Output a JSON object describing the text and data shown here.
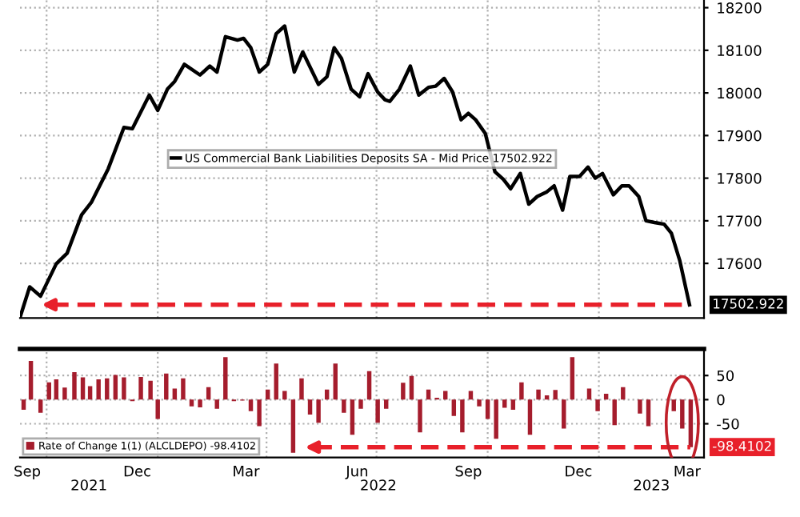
{
  "chart_data": [
    {
      "type": "line",
      "xlim": [
        "2021-09-09",
        "2023-03-29"
      ],
      "ylim": [
        17472,
        18218
      ],
      "yticks": [
        17600,
        17700,
        17800,
        17900,
        18000,
        18100,
        18200
      ],
      "xticks": [
        {
          "value": "2021-10-01",
          "label": null
        },
        {
          "value": "2022-01-01",
          "label": null
        },
        {
          "value": "2022-04-01",
          "label": null
        },
        {
          "value": "2022-07-01",
          "label": null
        },
        {
          "value": "2022-10-01",
          "label": null
        },
        {
          "value": "2023-01-01",
          "label": null
        }
      ],
      "tick_labels": "y",
      "grid": true,
      "legend": "center",
      "line_style": "solid",
      "marker": "none",
      "ref_lines": [
        {
          "axis": "y",
          "value": 17502.922,
          "label": "17502.922",
          "color": "#e8202a",
          "line_style": "dashed"
        }
      ],
      "series": [
        {
          "name": "US Commercial Bank Liabilities Deposits SA - Mid Price 17502.922",
          "color": "#000000",
          "x": [
            "2021-09-09",
            "2021-09-17",
            "2021-09-26",
            "2021-10-09",
            "2021-10-18",
            "2021-10-30",
            "2021-11-07",
            "2021-11-21",
            "2021-12-04",
            "2021-12-11",
            "2021-12-25",
            "2022-01-01",
            "2022-01-09",
            "2022-01-15",
            "2022-01-23",
            "2022-02-05",
            "2022-02-13",
            "2022-02-19",
            "2022-02-26",
            "2022-03-08",
            "2022-03-13",
            "2022-03-19",
            "2022-03-26",
            "2022-04-02",
            "2022-04-09",
            "2022-04-16",
            "2022-04-24",
            "2022-05-01",
            "2022-05-14",
            "2022-05-21",
            "2022-05-27",
            "2022-06-02",
            "2022-06-10",
            "2022-06-17",
            "2022-06-24",
            "2022-07-02",
            "2022-07-08",
            "2022-07-12",
            "2022-07-20",
            "2022-07-29",
            "2022-08-05",
            "2022-08-13",
            "2022-08-19",
            "2022-08-26",
            "2022-09-02",
            "2022-09-09",
            "2022-09-15",
            "2022-09-21",
            "2022-09-29",
            "2022-10-07",
            "2022-10-14",
            "2022-10-20",
            "2022-10-28",
            "2022-11-04",
            "2022-11-11",
            "2022-11-19",
            "2022-11-25",
            "2022-12-02",
            "2022-12-08",
            "2022-12-16",
            "2022-12-23",
            "2022-12-29",
            "2023-01-04",
            "2023-01-13",
            "2023-01-20",
            "2023-01-26",
            "2023-02-03",
            "2023-02-09",
            "2023-02-16",
            "2023-02-24",
            "2023-03-02",
            "2023-03-09",
            "2023-03-17"
          ],
          "values": [
            17473,
            17545,
            17523,
            17599,
            17624,
            17714,
            17743,
            17822,
            17919,
            17916,
            17995,
            17959,
            18009,
            18027,
            18067,
            18042,
            18063,
            18049,
            18132,
            18124,
            18128,
            18106,
            18049,
            18067,
            18139,
            18157,
            18049,
            18096,
            18020,
            18038,
            18106,
            18081,
            18009,
            17991,
            18045,
            18002,
            17984,
            17980,
            18009,
            18063,
            17995,
            18013,
            18016,
            18034,
            18002,
            17937,
            17952,
            17937,
            17905,
            17815,
            17797,
            17775,
            17811,
            17739,
            17757,
            17768,
            17782,
            17725,
            17804,
            17804,
            17826,
            17800,
            17811,
            17761,
            17782,
            17782,
            17757,
            17700,
            17696,
            17692,
            17671,
            17606,
            17502.922
          ]
        }
      ]
    },
    {
      "type": "bar",
      "xlim": [
        "2021-09-09",
        "2023-03-29"
      ],
      "ylim": [
        -120,
        105
      ],
      "yticks": [
        -50,
        0,
        50
      ],
      "xticks": [
        {
          "value": "2021-09-15",
          "label": "Sep"
        },
        {
          "value": "2021-10-01",
          "label": null
        },
        {
          "value": "2021-12-15",
          "label": "Dec"
        },
        {
          "value": "2022-01-01",
          "label": null
        },
        {
          "value": "2022-03-15",
          "label": "Mar"
        },
        {
          "value": "2022-04-01",
          "label": null
        },
        {
          "value": "2022-06-15",
          "label": "Jun"
        },
        {
          "value": "2022-07-01",
          "label": null
        },
        {
          "value": "2022-09-15",
          "label": "Sep"
        },
        {
          "value": "2022-10-01",
          "label": null
        },
        {
          "value": "2022-12-15",
          "label": "Dec"
        },
        {
          "value": "2023-01-01",
          "label": null
        },
        {
          "value": "2023-03-15",
          "label": "Mar"
        }
      ],
      "grid": true,
      "legend": "bottom left",
      "annotations": [
        "2021",
        "2022",
        "2023"
      ],
      "ref_lines": [
        {
          "axis": "y",
          "value": -98.4102,
          "label": "-98.4102",
          "color": "#e8202a",
          "line_style": "dashed"
        }
      ],
      "series": [
        {
          "name": "Rate of Change 1(1) (ALCLDEPO) -98.4102",
          "color": "#a51d2d",
          "x": [
            "2021-09-12",
            "2021-09-18",
            "2021-09-26",
            "2021-10-03",
            "2021-10-09",
            "2021-10-16",
            "2021-10-24",
            "2021-10-31",
            "2021-11-06",
            "2021-11-13",
            "2021-11-20",
            "2021-11-27",
            "2021-12-04",
            "2021-12-11",
            "2021-12-18",
            "2021-12-26",
            "2022-01-01",
            "2022-01-08",
            "2022-01-15",
            "2022-01-22",
            "2022-01-29",
            "2022-02-05",
            "2022-02-12",
            "2022-02-19",
            "2022-02-26",
            "2022-03-05",
            "2022-03-12",
            "2022-03-19",
            "2022-03-26",
            "2022-04-02",
            "2022-04-09",
            "2022-04-16",
            "2022-04-23",
            "2022-04-30",
            "2022-05-07",
            "2022-05-14",
            "2022-05-21",
            "2022-05-28",
            "2022-06-04",
            "2022-06-11",
            "2022-06-18",
            "2022-06-25",
            "2022-07-02",
            "2022-07-09",
            "2022-07-23",
            "2022-07-30",
            "2022-08-06",
            "2022-08-13",
            "2022-08-20",
            "2022-08-27",
            "2022-09-03",
            "2022-09-10",
            "2022-09-17",
            "2022-09-24",
            "2022-10-01",
            "2022-10-08",
            "2022-10-15",
            "2022-10-22",
            "2022-10-29",
            "2022-11-05",
            "2022-11-12",
            "2022-11-19",
            "2022-11-26",
            "2022-12-03",
            "2022-12-10",
            "2022-12-24",
            "2022-12-31",
            "2023-01-07",
            "2023-01-14",
            "2023-01-21",
            "2023-02-04",
            "2023-02-11",
            "2023-03-04",
            "2023-03-11",
            "2023-03-18"
          ],
          "values": [
            -21,
            80,
            -27,
            36,
            42,
            25,
            57,
            46,
            28,
            42,
            44,
            51,
            46,
            -3,
            47,
            39,
            -40,
            54,
            23,
            44,
            -14,
            -16,
            26,
            -19,
            88,
            -3,
            -2,
            -24,
            -55,
            21,
            75,
            18,
            -110,
            44,
            -31,
            -48,
            21,
            75,
            -27,
            -73,
            -19,
            59,
            -48,
            -19,
            35,
            49,
            -68,
            21,
            4,
            18,
            -34,
            -68,
            18,
            -14,
            -40,
            -81,
            -17,
            -21,
            36,
            -73,
            21,
            9,
            20,
            -60,
            88,
            23,
            -24,
            12,
            -53,
            26,
            -29,
            -55,
            -24,
            -60,
            -98.4102
          ]
        }
      ]
    }
  ]
}
